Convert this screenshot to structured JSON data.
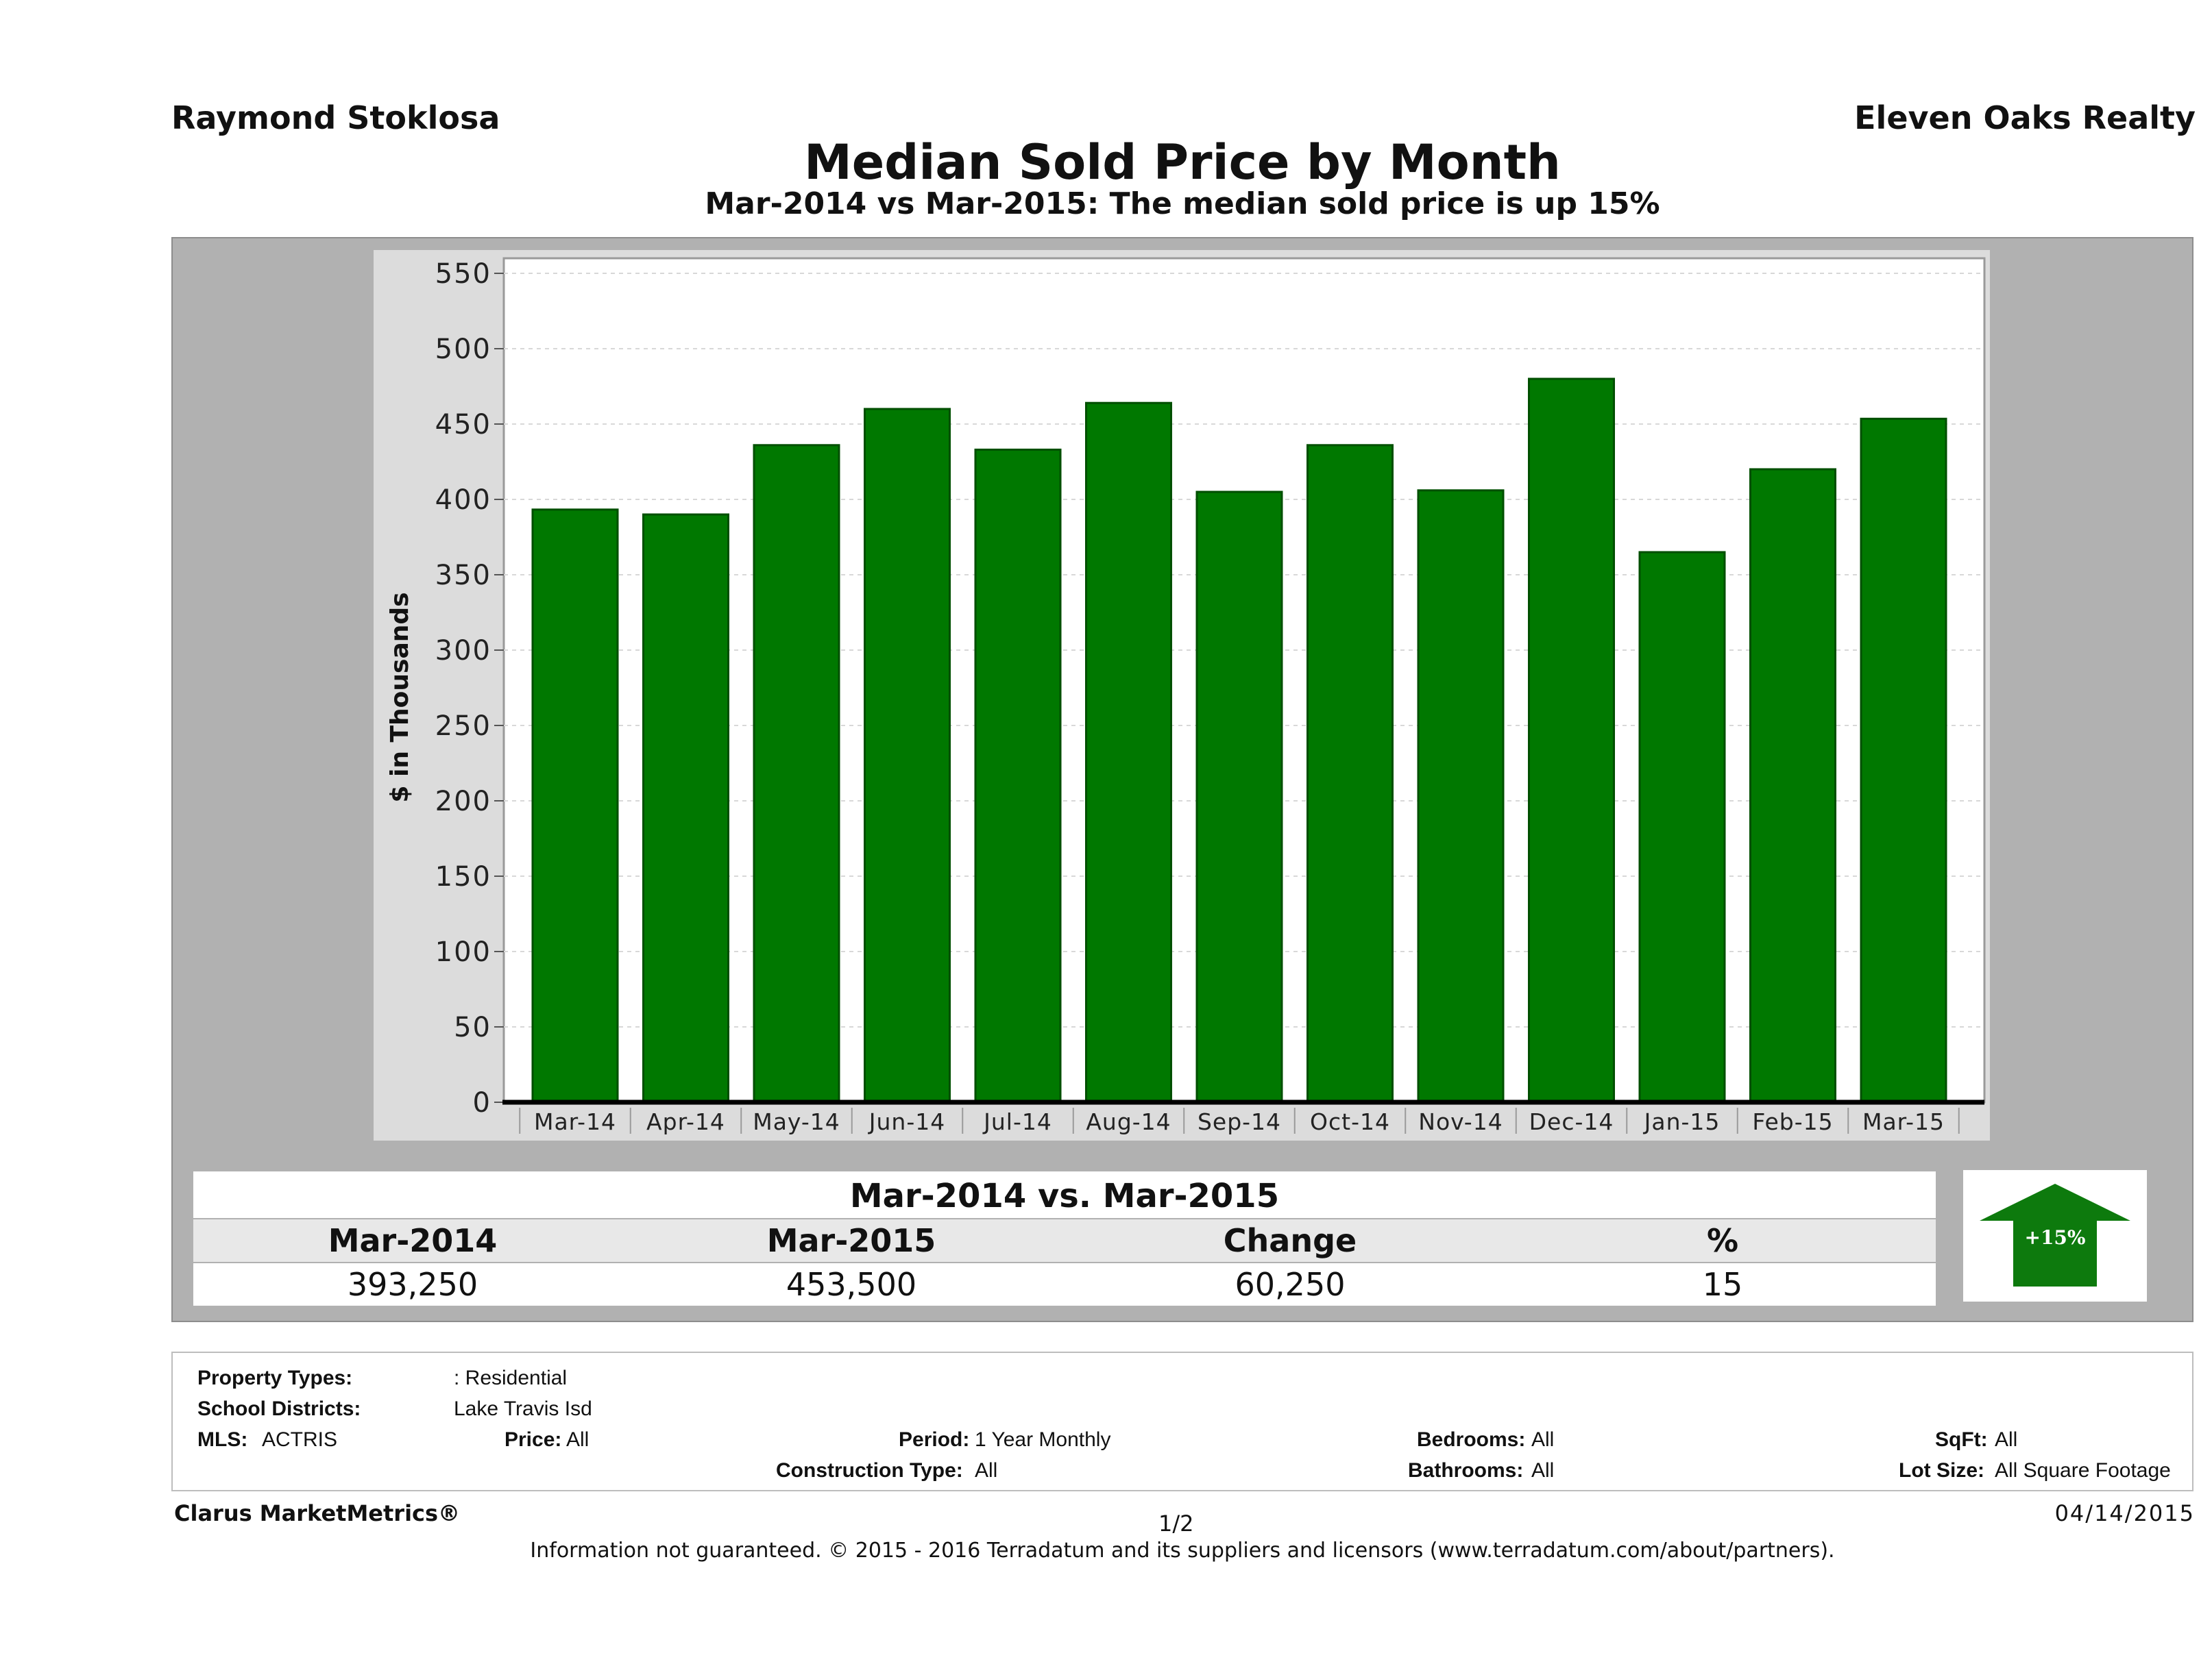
{
  "header": {
    "agent": "Raymond Stoklosa",
    "brokerage": "Eleven Oaks Realty",
    "title": "Median Sold Price by Month",
    "subtitle": "Mar-2014 vs Mar-2015: The median sold price is up 15%"
  },
  "chart_data": {
    "type": "bar",
    "categories": [
      "Mar-14",
      "Apr-14",
      "May-14",
      "Jun-14",
      "Jul-14",
      "Aug-14",
      "Sep-14",
      "Oct-14",
      "Nov-14",
      "Dec-14",
      "Jan-15",
      "Feb-15",
      "Mar-15"
    ],
    "values": [
      393.25,
      390,
      436,
      460,
      433,
      464,
      405,
      436,
      406,
      480,
      365,
      420,
      453.5
    ],
    "ylabel": "$ in Thousands",
    "xlabel": "",
    "ylim": [
      0,
      560
    ],
    "yticks": [
      0,
      50,
      100,
      150,
      200,
      250,
      300,
      350,
      400,
      450,
      500,
      550
    ],
    "grid": true,
    "bar_color": "#007800"
  },
  "summary": {
    "heading": "Mar-2014 vs. Mar-2015",
    "columns": [
      "Mar-2014",
      "Mar-2015",
      "Change",
      "%"
    ],
    "values": [
      "393,250",
      "453,500",
      "60,250",
      "15"
    ],
    "badge": "+15%",
    "badge_color": "#0d7a0d"
  },
  "criteria": {
    "property_types_label": "Property Types:",
    "property_types_value": ": Residential",
    "school_districts_label": "School Districts:",
    "school_districts_value": "Lake Travis Isd",
    "mls_label": "MLS:",
    "mls_value": "ACTRIS",
    "price_label": "Price:",
    "price_value": "All",
    "period_label": "Period:",
    "period_value": "1 Year Monthly",
    "construction_label": "Construction Type:",
    "construction_value": "All",
    "bedrooms_label": "Bedrooms:",
    "bedrooms_value": "All",
    "bathrooms_label": "Bathrooms:",
    "bathrooms_value": "All",
    "sqft_label": "SqFt:",
    "sqft_value": "All",
    "lotsize_label": "Lot Size:",
    "lotsize_value": "All Square Footage"
  },
  "footer": {
    "brand": "Clarus MarketMetrics®",
    "page": "1/2",
    "date": "04/14/2015",
    "disclaimer": "Information not guaranteed. © 2015 - 2016 Terradatum and its suppliers and licensors (www.terradatum.com/about/partners)."
  }
}
